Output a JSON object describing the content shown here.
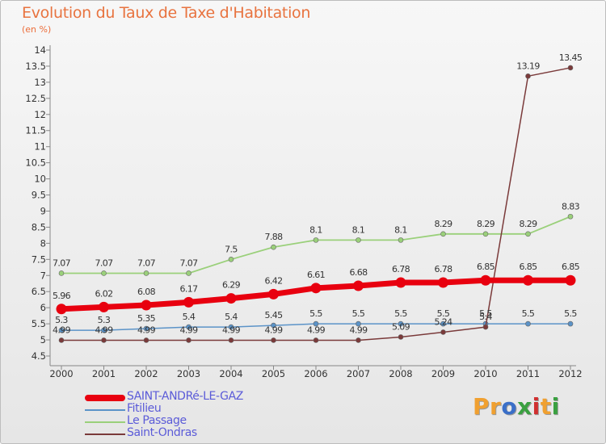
{
  "title": "Evolution du Taux de Taxe d'Habitation",
  "subtitle": "(en %)",
  "brand": {
    "text": "Proxiti",
    "colors": [
      "#f0a030",
      "#f0a030",
      "#3a6fc8",
      "#3aa040",
      "#d03030",
      "#f0a030",
      "#3aa040"
    ]
  },
  "chart_data": {
    "type": "line",
    "categories": [
      "2000",
      "2001",
      "2002",
      "2003",
      "2004",
      "2005",
      "2006",
      "2007",
      "2008",
      "2009",
      "2010",
      "2011",
      "2012"
    ],
    "ylim": [
      4.5,
      14
    ],
    "yticks": [
      "4.5",
      "5",
      "5.5",
      "6",
      "6.5",
      "7",
      "7.5",
      "8",
      "8.5",
      "9",
      "9.5",
      "10",
      "10.5",
      "11",
      "11.5",
      "12",
      "12.5",
      "13",
      "13.5",
      "14"
    ],
    "grid": false,
    "series": [
      {
        "name": "SAINT-ANDRé-LE-GAZ",
        "color": "#e8000f",
        "values": [
          5.96,
          6.02,
          6.08,
          6.17,
          6.29,
          6.42,
          6.61,
          6.68,
          6.78,
          6.78,
          6.85,
          6.85,
          6.85
        ],
        "labels": [
          "5.96",
          "6.02",
          "6.08",
          "6.17",
          "6.29",
          "6.42",
          "6.61",
          "6.68",
          "6.78",
          "6.78",
          "6.85",
          "6.85",
          "6.85"
        ]
      },
      {
        "name": "Fitilieu",
        "color": "#5b93c8",
        "values": [
          5.3,
          5.3,
          5.35,
          5.4,
          5.4,
          5.45,
          5.5,
          5.5,
          5.5,
          5.5,
          5.5,
          5.5,
          5.5
        ],
        "labels": [
          "5.3",
          "5.3",
          "5.35",
          "5.4",
          "5.4",
          "5.45",
          "5.5",
          "5.5",
          "5.5",
          "5.5",
          "5.5",
          "5.5",
          "5.5"
        ]
      },
      {
        "name": "Le Passage",
        "color": "#9ad07a",
        "values": [
          7.07,
          7.07,
          7.07,
          7.07,
          7.5,
          7.88,
          8.1,
          8.1,
          8.1,
          8.29,
          8.29,
          8.29,
          8.83
        ],
        "labels": [
          "7.07",
          "7.07",
          "7.07",
          "7.07",
          "7.5",
          "7.88",
          "8.1",
          "8.1",
          "8.1",
          "8.29",
          "8.29",
          "8.29",
          "8.83"
        ]
      },
      {
        "name": "Saint-Ondras",
        "color": "#7a3a3a",
        "values": [
          4.99,
          4.99,
          4.99,
          4.99,
          4.99,
          4.99,
          4.99,
          4.99,
          5.09,
          5.24,
          5.4,
          13.19,
          13.45
        ],
        "labels": [
          "4.99",
          "4.99",
          "4.99",
          "4.99",
          "4.99",
          "4.99",
          "4.99",
          "4.99",
          "5.09",
          "5.24",
          "5.4",
          "13.19",
          "13.45"
        ]
      }
    ]
  }
}
